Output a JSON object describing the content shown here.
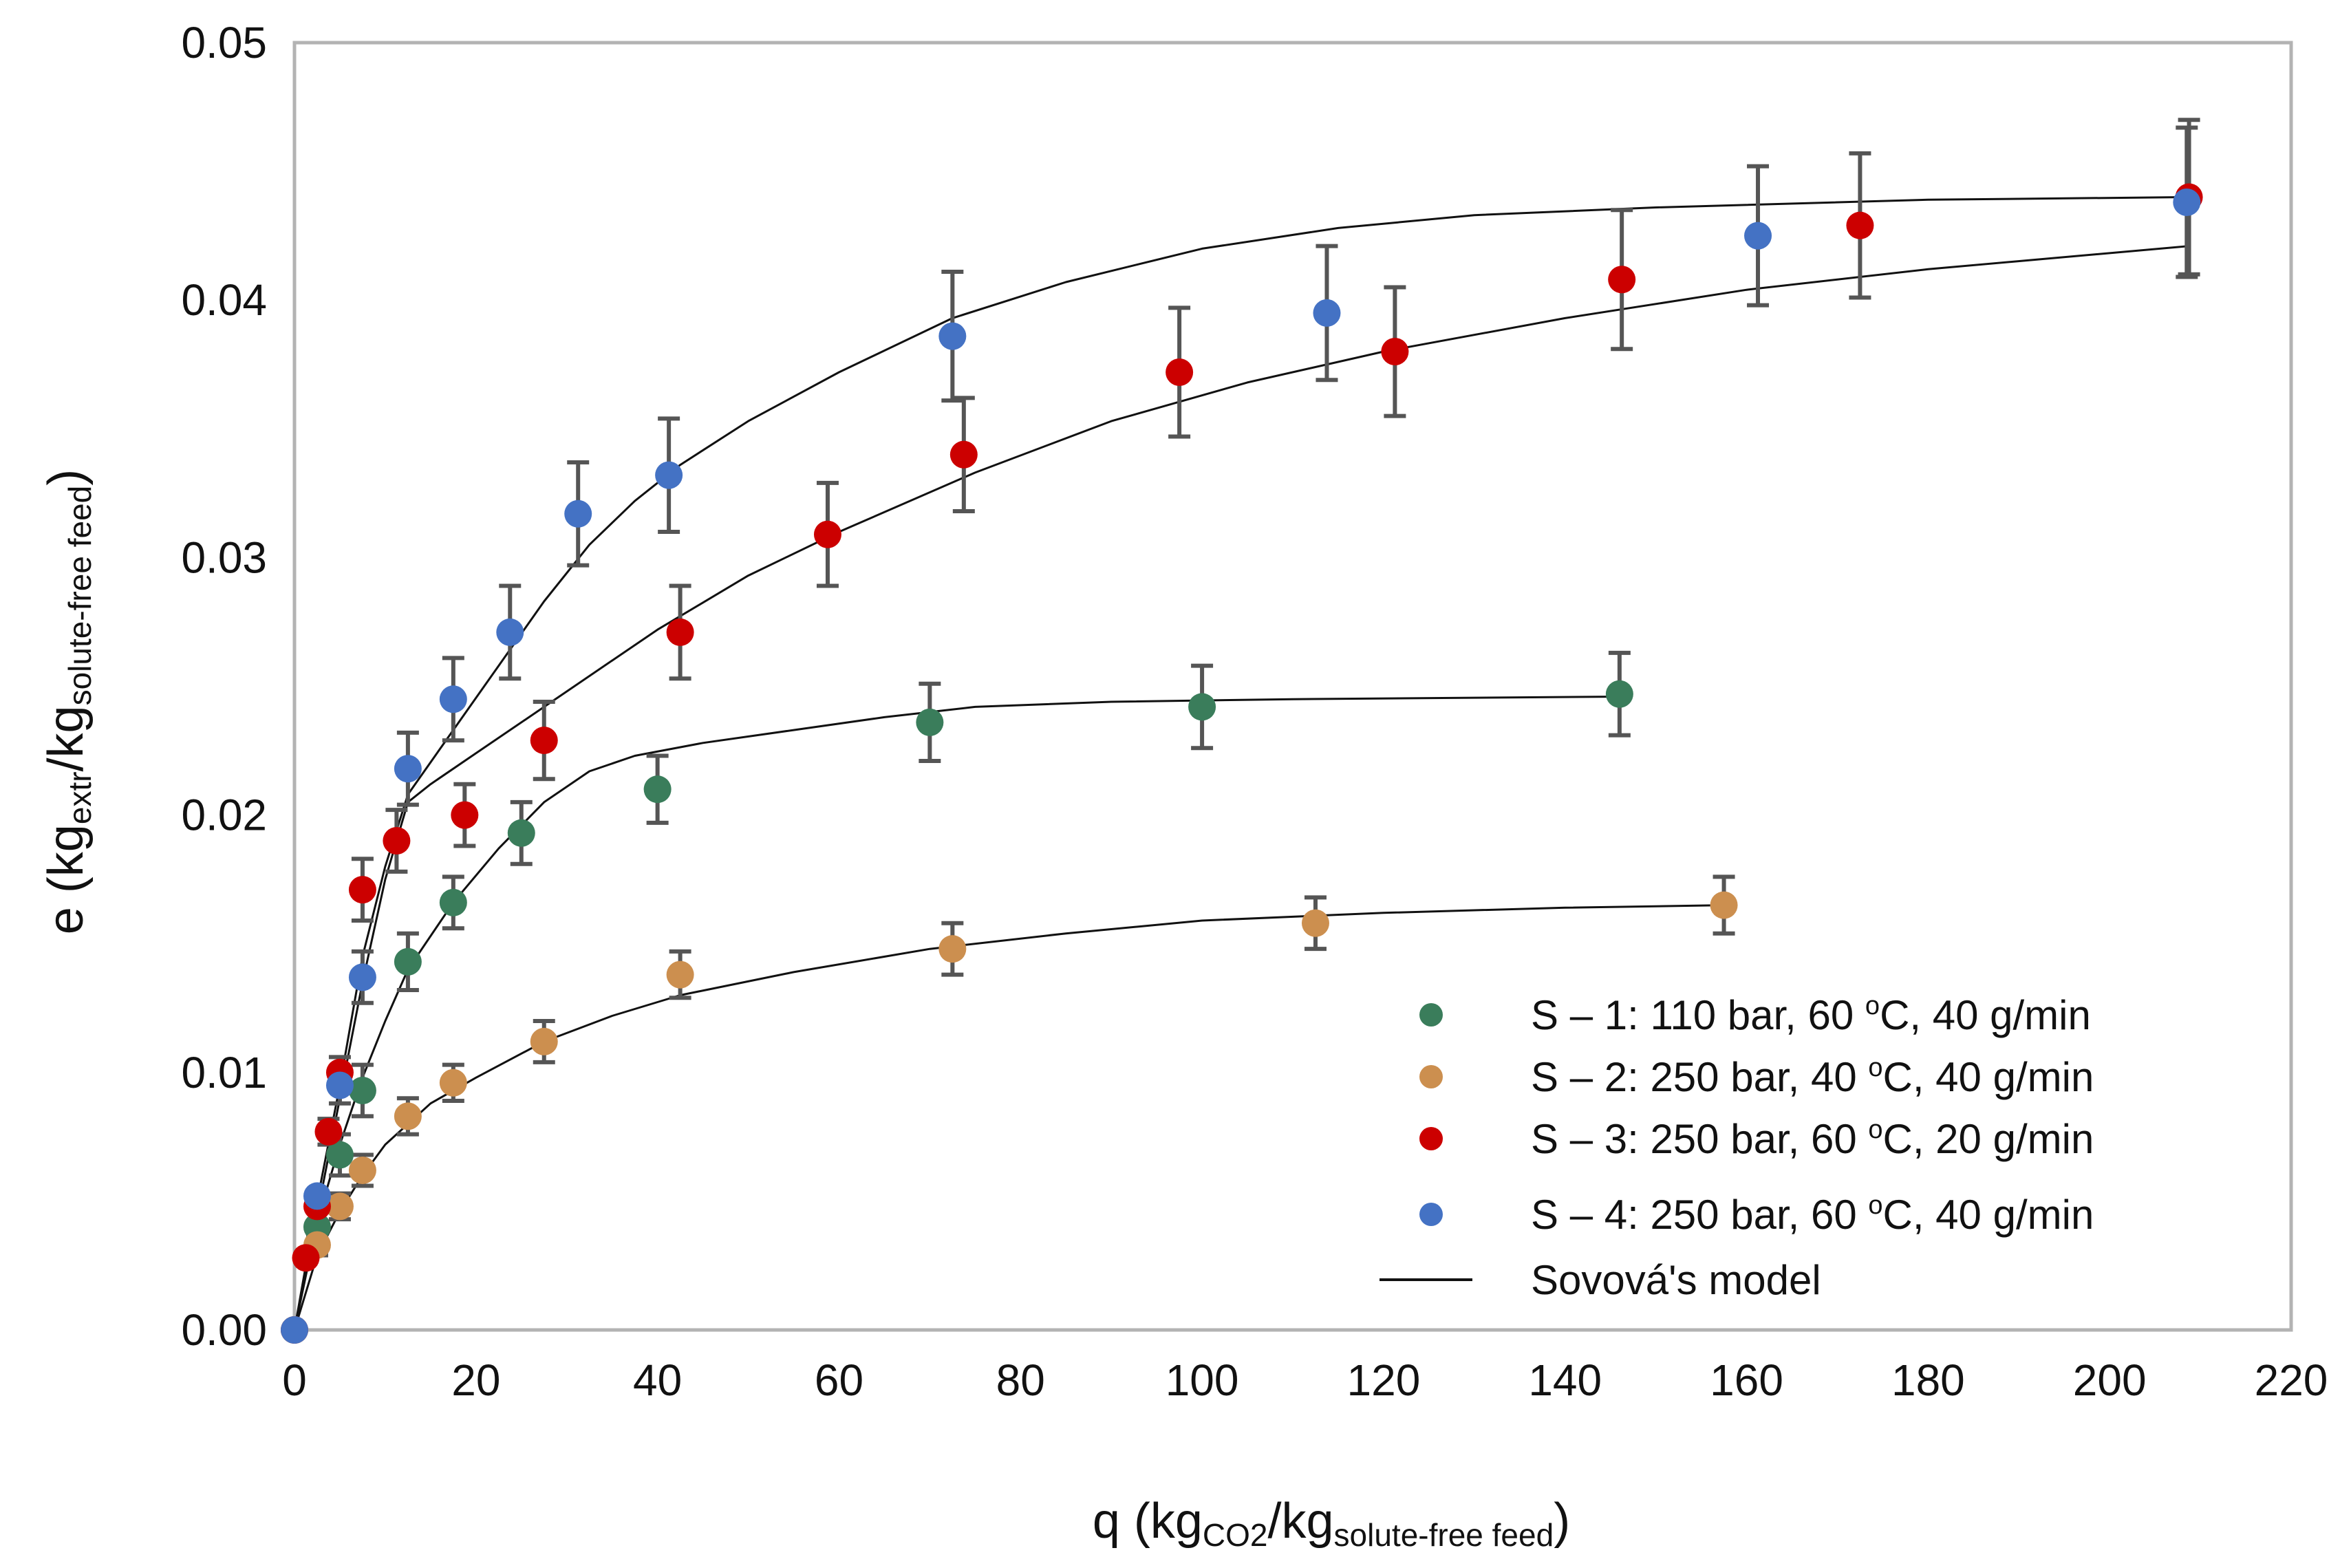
{
  "chart_data": {
    "type": "scatter",
    "title": "",
    "xlabel": {
      "main": "q (kg",
      "sub1": "CO2",
      "mid": "/kg",
      "sub2": "solute-free  feed",
      "end": ")"
    },
    "ylabel": {
      "main": "e (kg",
      "sub1": "extr",
      "mid": "/kg",
      "sub2": "solute-free  feed",
      "end": ")"
    },
    "xlim": [
      0,
      220
    ],
    "ylim": [
      0,
      0.05
    ],
    "x_ticks": [
      0,
      20,
      40,
      60,
      80,
      100,
      120,
      140,
      160,
      180,
      200,
      220
    ],
    "x_tick_labels": [
      "0",
      "20",
      "40",
      "60",
      "80",
      "100",
      "120",
      "140",
      "160",
      "180",
      "200",
      "220"
    ],
    "y_ticks": [
      0,
      0.01,
      0.02,
      0.03,
      0.04,
      0.05
    ],
    "y_tick_labels": [
      "0.00",
      "0.01",
      "0.02",
      "0.03",
      "0.04",
      "0.05"
    ],
    "grid": false,
    "legend_position": "bottom-right",
    "series": [
      {
        "name": "S – 1: 110 bar, 60 °C, 40 g/min",
        "legend_parts": [
          "S – 1: 110 bar, 60 ",
          "o",
          "C, 40 g/min"
        ],
        "color": "#3a7d5b",
        "points": [
          {
            "x": 0,
            "y": 0.0
          },
          {
            "x": 2.5,
            "y": 0.004,
            "err": 0.0006
          },
          {
            "x": 5,
            "y": 0.0068,
            "err": 0.0008
          },
          {
            "x": 7.5,
            "y": 0.0093,
            "err": 0.001
          },
          {
            "x": 12.5,
            "y": 0.0143,
            "err": 0.0011
          },
          {
            "x": 17.5,
            "y": 0.0166,
            "err": 0.001
          },
          {
            "x": 25,
            "y": 0.0193,
            "err": 0.0012
          },
          {
            "x": 40,
            "y": 0.021,
            "err": 0.0013
          },
          {
            "x": 70,
            "y": 0.0236,
            "err": 0.0015
          },
          {
            "x": 100,
            "y": 0.0242,
            "err": 0.0016
          },
          {
            "x": 146,
            "y": 0.0247,
            "err": 0.0016
          }
        ]
      },
      {
        "name": "S – 2: 250 bar, 40 °C, 40 g/min",
        "legend_parts": [
          "S – 2: 250 bar, 40 ",
          "o",
          "C, 40 g/min"
        ],
        "color": "#cc8f4f",
        "points": [
          {
            "x": 0,
            "y": 0.0
          },
          {
            "x": 2.5,
            "y": 0.0033,
            "err": 0.0004
          },
          {
            "x": 5,
            "y": 0.0048,
            "err": 0.0005
          },
          {
            "x": 7.5,
            "y": 0.0062,
            "err": 0.0006
          },
          {
            "x": 12.5,
            "y": 0.0083,
            "err": 0.0007
          },
          {
            "x": 17.5,
            "y": 0.0096,
            "err": 0.0007
          },
          {
            "x": 27.5,
            "y": 0.0112,
            "err": 0.0008
          },
          {
            "x": 42.5,
            "y": 0.0138,
            "err": 0.0009
          },
          {
            "x": 72.5,
            "y": 0.0148,
            "err": 0.001
          },
          {
            "x": 112.5,
            "y": 0.0158,
            "err": 0.001
          },
          {
            "x": 157.5,
            "y": 0.0165,
            "err": 0.0011
          }
        ]
      },
      {
        "name": "S – 3: 250 bar, 60 °C, 20 g/min",
        "legend_parts": [
          "S – 3: 250 bar, 60 ",
          "o",
          "C, 20 g/min"
        ],
        "color": "#cc0000",
        "points": [
          {
            "x": 0,
            "y": 0.0
          },
          {
            "x": 1.25,
            "y": 0.0028,
            "err": 0.0
          },
          {
            "x": 2.5,
            "y": 0.0048,
            "err": 0.0
          },
          {
            "x": 3.75,
            "y": 0.0077,
            "err": 0.0005
          },
          {
            "x": 5,
            "y": 0.01,
            "err": 0.0006
          },
          {
            "x": 7.5,
            "y": 0.0171,
            "err": 0.0012
          },
          {
            "x": 11.25,
            "y": 0.019,
            "err": 0.0012
          },
          {
            "x": 18.75,
            "y": 0.02,
            "err": 0.0012
          },
          {
            "x": 27.5,
            "y": 0.0229,
            "err": 0.0015
          },
          {
            "x": 42.5,
            "y": 0.0271,
            "err": 0.0018
          },
          {
            "x": 58.75,
            "y": 0.0309,
            "err": 0.002
          },
          {
            "x": 73.75,
            "y": 0.034,
            "err": 0.0022
          },
          {
            "x": 97.5,
            "y": 0.0372,
            "err": 0.0025
          },
          {
            "x": 121.25,
            "y": 0.038,
            "err": 0.0025
          },
          {
            "x": 146.25,
            "y": 0.0408,
            "err": 0.0027
          },
          {
            "x": 172.5,
            "y": 0.0429,
            "err": 0.0028
          },
          {
            "x": 208.75,
            "y": 0.044,
            "err": 0.003
          }
        ]
      },
      {
        "name": "S – 4: 250 bar, 60 °C, 40 g/min",
        "legend_parts": [
          "S – 4: 250 bar, 60 ",
          "o",
          "C, 40 g/min"
        ],
        "color": "#4472c4",
        "points": [
          {
            "x": 0,
            "y": 0.0
          },
          {
            "x": 2.5,
            "y": 0.0052,
            "err": 0.0
          },
          {
            "x": 5,
            "y": 0.0095,
            "err": 0.0007
          },
          {
            "x": 7.5,
            "y": 0.0137,
            "err": 0.001
          },
          {
            "x": 12.5,
            "y": 0.0218,
            "err": 0.0014
          },
          {
            "x": 17.5,
            "y": 0.0245,
            "err": 0.0016
          },
          {
            "x": 23.75,
            "y": 0.0271,
            "err": 0.0018
          },
          {
            "x": 31.25,
            "y": 0.0317,
            "err": 0.002
          },
          {
            "x": 41.25,
            "y": 0.0332,
            "err": 0.0022
          },
          {
            "x": 72.5,
            "y": 0.0386,
            "err": 0.0025
          },
          {
            "x": 113.75,
            "y": 0.0395,
            "err": 0.0026
          },
          {
            "x": 161.25,
            "y": 0.0425,
            "err": 0.0027
          },
          {
            "x": 208.5,
            "y": 0.0438,
            "err": 0.0029
          }
        ]
      }
    ],
    "model": {
      "name": "Sovová's model",
      "color": "#111111",
      "curves": [
        [
          [
            0,
            0
          ],
          [
            2.5,
            0.0042
          ],
          [
            5,
            0.0072
          ],
          [
            7.5,
            0.0098
          ],
          [
            10,
            0.012
          ],
          [
            12.5,
            0.014
          ],
          [
            17.5,
            0.0166
          ],
          [
            22.5,
            0.0187
          ],
          [
            27.5,
            0.0205
          ],
          [
            32.5,
            0.0217
          ],
          [
            37.5,
            0.0223
          ],
          [
            45,
            0.0228
          ],
          [
            55,
            0.0233
          ],
          [
            65,
            0.0238
          ],
          [
            75,
            0.0242
          ],
          [
            90,
            0.0244
          ],
          [
            110,
            0.0245
          ],
          [
            146,
            0.0246
          ]
        ],
        [
          [
            0,
            0
          ],
          [
            2.5,
            0.0029
          ],
          [
            5,
            0.0046
          ],
          [
            7.5,
            0.006
          ],
          [
            10,
            0.0072
          ],
          [
            15,
            0.0088
          ],
          [
            20,
            0.0098
          ],
          [
            27.5,
            0.0112
          ],
          [
            35,
            0.0122
          ],
          [
            42.5,
            0.013
          ],
          [
            55,
            0.0139
          ],
          [
            70,
            0.0148
          ],
          [
            85,
            0.0154
          ],
          [
            100,
            0.0159
          ],
          [
            120,
            0.0162
          ],
          [
            140,
            0.0164
          ],
          [
            157.5,
            0.0165
          ]
        ],
        [
          [
            0,
            0
          ],
          [
            2.5,
            0.0045
          ],
          [
            5,
            0.009
          ],
          [
            7.5,
            0.0135
          ],
          [
            10,
            0.0175
          ],
          [
            12.5,
            0.0205
          ],
          [
            15,
            0.0212
          ],
          [
            20,
            0.0224
          ],
          [
            30,
            0.0248
          ],
          [
            40,
            0.0272
          ],
          [
            50,
            0.0293
          ],
          [
            60,
            0.031
          ],
          [
            75,
            0.0333
          ],
          [
            90,
            0.0353
          ],
          [
            105,
            0.0368
          ],
          [
            120,
            0.038
          ],
          [
            140,
            0.0393
          ],
          [
            160,
            0.0404
          ],
          [
            180,
            0.0412
          ],
          [
            208.75,
            0.0421
          ]
        ],
        [
          [
            0,
            0
          ],
          [
            2.5,
            0.005
          ],
          [
            5,
            0.0095
          ],
          [
            7.5,
            0.0145
          ],
          [
            10,
            0.018
          ],
          [
            12.5,
            0.0208
          ],
          [
            17.5,
            0.0233
          ],
          [
            22.5,
            0.0258
          ],
          [
            27.5,
            0.0283
          ],
          [
            32.5,
            0.0305
          ],
          [
            37.5,
            0.0322
          ],
          [
            42.5,
            0.0336
          ],
          [
            50,
            0.0353
          ],
          [
            60,
            0.0372
          ],
          [
            72.5,
            0.0393
          ],
          [
            85,
            0.0407
          ],
          [
            100,
            0.042
          ],
          [
            115,
            0.0428
          ],
          [
            130,
            0.0433
          ],
          [
            150,
            0.0436
          ],
          [
            180,
            0.0439
          ],
          [
            208.5,
            0.044
          ]
        ]
      ]
    }
  }
}
